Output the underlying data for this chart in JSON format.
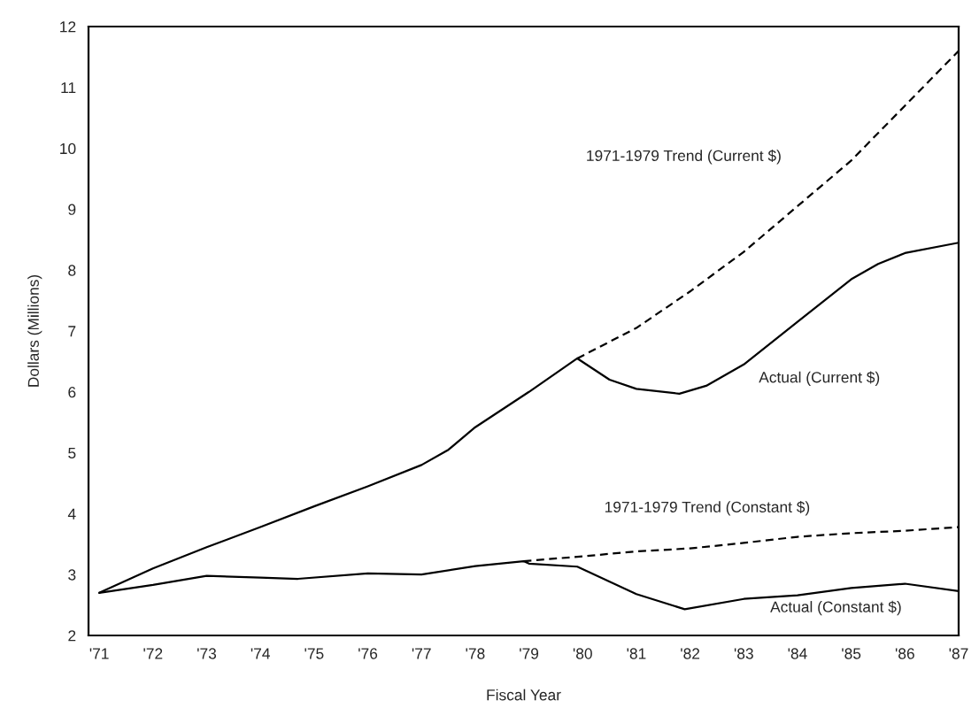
{
  "chart_data": {
    "type": "line",
    "xlabel": "Fiscal Year",
    "ylabel": "Dollars (Millions)",
    "xlim": [
      1970.8,
      1987
    ],
    "ylim": [
      2,
      12
    ],
    "xticks": [
      {
        "value": 1971,
        "label": "'71"
      },
      {
        "value": 1972,
        "label": "'72"
      },
      {
        "value": 1973,
        "label": "'73"
      },
      {
        "value": 1974,
        "label": "'74"
      },
      {
        "value": 1975,
        "label": "'75"
      },
      {
        "value": 1976,
        "label": "'76"
      },
      {
        "value": 1977,
        "label": "'77"
      },
      {
        "value": 1978,
        "label": "'78"
      },
      {
        "value": 1979,
        "label": "'79"
      },
      {
        "value": 1980,
        "label": "'80"
      },
      {
        "value": 1981,
        "label": "'81"
      },
      {
        "value": 1982,
        "label": "'82"
      },
      {
        "value": 1983,
        "label": "'83"
      },
      {
        "value": 1984,
        "label": "'84"
      },
      {
        "value": 1985,
        "label": "'85"
      },
      {
        "value": 1986,
        "label": "'86"
      },
      {
        "value": 1987,
        "label": "'87"
      }
    ],
    "yticks": [
      2,
      3,
      4,
      5,
      6,
      7,
      8,
      9,
      10,
      11,
      12
    ],
    "grid": false,
    "legend": false,
    "series": [
      {
        "name": "1971-1979 Trend (Current $)",
        "color": "#000000",
        "line_style": "dashed",
        "x": [
          1979.9,
          1981,
          1982,
          1983,
          1984,
          1985,
          1986,
          1987
        ],
        "values": [
          6.55,
          7.05,
          7.65,
          8.3,
          9.05,
          9.8,
          10.7,
          11.6
        ]
      },
      {
        "name": "Actual (Current $)",
        "color": "#000000",
        "line_style": "solid",
        "x": [
          1971,
          1972,
          1973,
          1974,
          1975,
          1976,
          1977,
          1977.5,
          1978,
          1979,
          1979.9,
          1980.5,
          1981,
          1981.8,
          1982.3,
          1983,
          1984,
          1985,
          1985.5,
          1986,
          1987
        ],
        "values": [
          2.7,
          3.1,
          3.45,
          3.78,
          4.12,
          4.45,
          4.8,
          5.05,
          5.42,
          6.0,
          6.55,
          6.2,
          6.05,
          5.97,
          6.1,
          6.45,
          7.15,
          7.85,
          8.1,
          8.28,
          8.45
        ]
      },
      {
        "name": "1971-1979 Trend (Constant $)",
        "color": "#000000",
        "line_style": "dashed",
        "x": [
          1978.9,
          1980,
          1981,
          1982,
          1983,
          1984,
          1985,
          1986,
          1987
        ],
        "values": [
          3.22,
          3.3,
          3.38,
          3.43,
          3.52,
          3.62,
          3.68,
          3.72,
          3.78
        ]
      },
      {
        "name": "Actual (Constant $)",
        "color": "#000000",
        "line_style": "solid",
        "x": [
          1971,
          1972,
          1973,
          1974,
          1974.7,
          1976,
          1977,
          1978,
          1978.9,
          1979,
          1979.9,
          1981,
          1981.9,
          1983,
          1984,
          1985,
          1986,
          1987
        ],
        "values": [
          2.7,
          2.83,
          2.98,
          2.95,
          2.93,
          3.02,
          3.0,
          3.14,
          3.22,
          3.18,
          3.13,
          2.68,
          2.43,
          2.6,
          2.66,
          2.78,
          2.85,
          2.73
        ]
      }
    ]
  }
}
